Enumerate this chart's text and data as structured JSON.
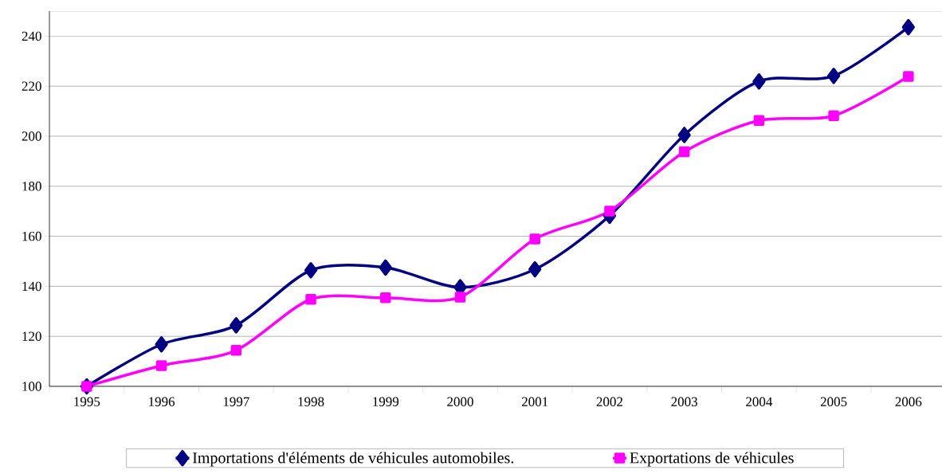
{
  "chart_data": {
    "type": "line",
    "categories": [
      "1995",
      "1996",
      "1997",
      "1998",
      "1999",
      "2000",
      "2001",
      "2002",
      "2003",
      "2004",
      "2005",
      "2006"
    ],
    "series": [
      {
        "name": "Importations d'éléments de véhicules automobiles.",
        "color": "#000080",
        "marker": "diamond",
        "values": [
          100,
          116.8,
          124.4,
          146.4,
          147.5,
          139.6,
          146.8,
          168.2,
          200.5,
          221.9,
          224.1,
          243.6
        ]
      },
      {
        "name": "Exportations de véhicules",
        "color": "#ff00ff",
        "marker": "square",
        "values": [
          100,
          108.3,
          114.4,
          134.8,
          135.4,
          135.7,
          158.9,
          170.1,
          193.8,
          206.3,
          208.2,
          223.9
        ]
      }
    ],
    "ylim": [
      100,
      250
    ],
    "yticks": [
      100,
      120,
      140,
      160,
      180,
      200,
      220,
      240
    ],
    "grid": "y",
    "legend": "bottom",
    "line_style": "solid"
  }
}
